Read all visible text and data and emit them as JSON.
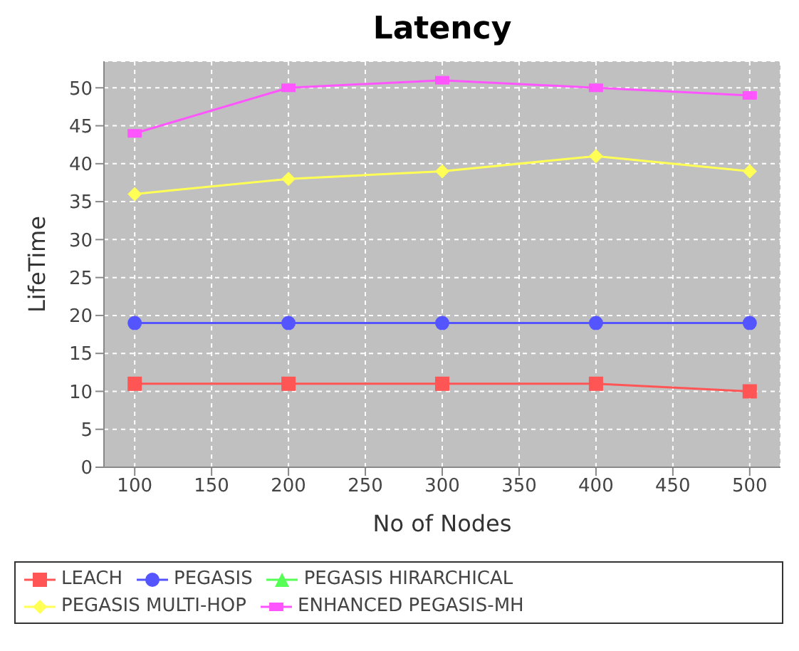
{
  "chart_data": {
    "type": "line",
    "title": "Latency",
    "xlabel": "No of Nodes",
    "ylabel": "LifeTime",
    "x": [
      100,
      200,
      300,
      400,
      500
    ],
    "xlim": [
      80,
      520
    ],
    "xticks": [
      100,
      150,
      200,
      250,
      300,
      350,
      400,
      450,
      500
    ],
    "ylim": [
      0,
      53.5
    ],
    "yticks": [
      0,
      5,
      10,
      15,
      20,
      25,
      30,
      35,
      40,
      45,
      50
    ],
    "grid": true,
    "legend": "bottom",
    "series": [
      {
        "name": "LEACH",
        "color": "#ff5555",
        "marker": "square",
        "values": [
          11,
          11,
          11,
          11,
          10
        ]
      },
      {
        "name": "PEGASIS",
        "color": "#5555ff",
        "marker": "circle",
        "values": [
          19,
          19,
          19,
          19,
          19
        ]
      },
      {
        "name": "PEGASIS HIRARCHICAL",
        "color": "#55ff55",
        "marker": "triangle",
        "values": [
          null,
          null,
          null,
          null,
          null
        ]
      },
      {
        "name": "PEGASIS MULTI-HOP",
        "color": "#ffff55",
        "marker": "diamond",
        "values": [
          36,
          38,
          39,
          41,
          39
        ]
      },
      {
        "name": "ENHANCED PEGASIS-MH",
        "color": "#ff55ff",
        "marker": "rectangle",
        "values": [
          44,
          50,
          51,
          50,
          49
        ]
      }
    ]
  }
}
